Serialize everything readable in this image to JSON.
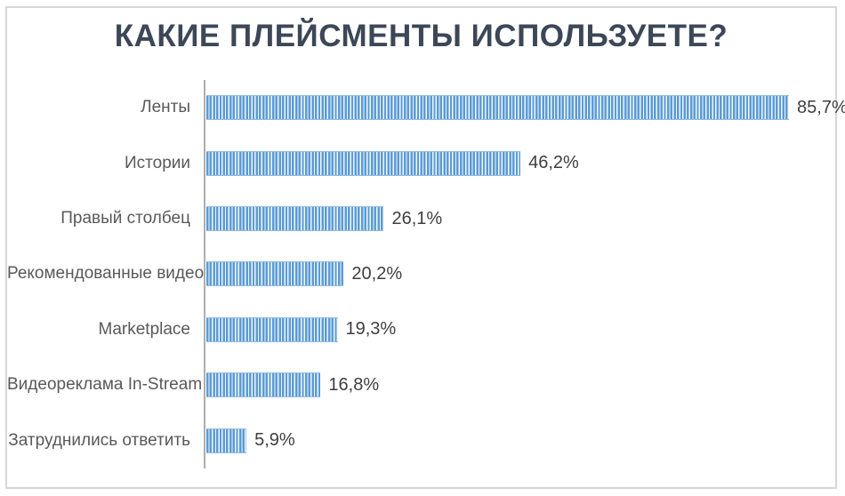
{
  "chart_data": {
    "type": "bar",
    "orientation": "horizontal",
    "title": "КАКИЕ ПЛЕЙСМЕНТЫ ИСПОЛЬЗУЕТЕ?",
    "categories": [
      "Ленты",
      "Истории",
      "Правый столбец",
      "Рекомендованные видео",
      "Marketplace",
      "Видеореклама In-Stream",
      "Затруднились ответить"
    ],
    "values": [
      85.7,
      46.2,
      26.1,
      20.2,
      19.3,
      16.8,
      5.9
    ],
    "value_labels": [
      "85,7%",
      "46,2%",
      "26,1%",
      "20,2%",
      "19,3%",
      "16,8%",
      "5,9%"
    ],
    "xlabel": "",
    "ylabel": "",
    "xlim": [
      0,
      92.5
    ],
    "grid": false,
    "legend": false,
    "colors": {
      "bar_stripe": "#5B9BD5",
      "bar_gap": "#F2F7FC",
      "title_text": "#3C4757",
      "category_text": "#595959",
      "value_text": "#3F3F3F",
      "axis_line": "#ADADAD",
      "frame_border": "#D7D7D7",
      "background": "#FFFFFF"
    }
  }
}
